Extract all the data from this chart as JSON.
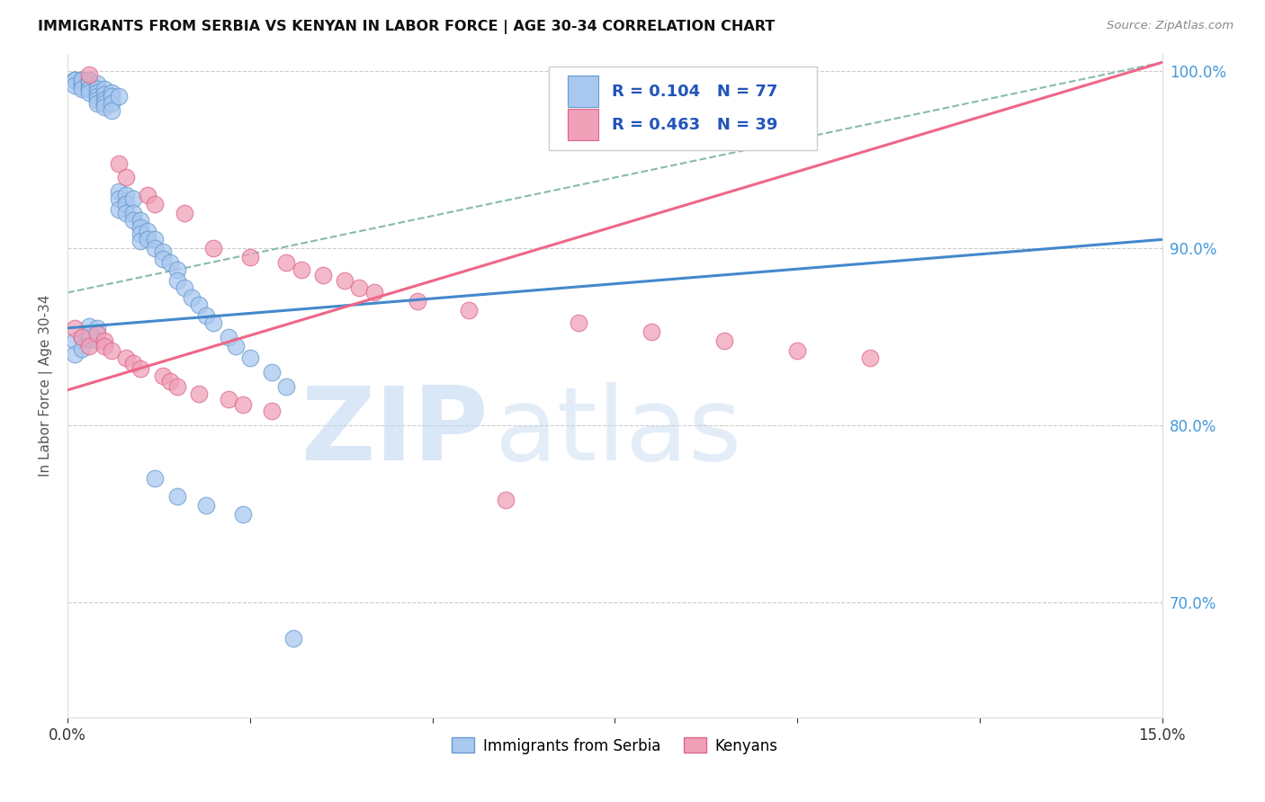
{
  "title": "IMMIGRANTS FROM SERBIA VS KENYAN IN LABOR FORCE | AGE 30-34 CORRELATION CHART",
  "source_text": "Source: ZipAtlas.com",
  "ylabel": "In Labor Force | Age 30-34",
  "xlim": [
    0.0,
    0.15
  ],
  "ylim": [
    0.635,
    1.01
  ],
  "watermark_zip": "ZIP",
  "watermark_atlas": "atlas",
  "serbia_color": "#A8C8F0",
  "kenya_color": "#F0A0B8",
  "serbia_edge": "#6699CC",
  "kenya_edge": "#DD6688",
  "line_blue": "#4488CC",
  "line_pink": "#EE6688",
  "dashed_line_color": "#88BBAA",
  "serbia_x": [
    0.001,
    0.001,
    0.001,
    0.001,
    0.002,
    0.002,
    0.002,
    0.002,
    0.002,
    0.003,
    0.003,
    0.003,
    0.003,
    0.003,
    0.003,
    0.004,
    0.004,
    0.004,
    0.004,
    0.004,
    0.004,
    0.005,
    0.005,
    0.005,
    0.005,
    0.005,
    0.006,
    0.006,
    0.006,
    0.006,
    0.007,
    0.007,
    0.007,
    0.007,
    0.008,
    0.008,
    0.008,
    0.009,
    0.009,
    0.009,
    0.01,
    0.01,
    0.01,
    0.01,
    0.011,
    0.011,
    0.012,
    0.012,
    0.013,
    0.013,
    0.014,
    0.015,
    0.015,
    0.016,
    0.017,
    0.018,
    0.019,
    0.02,
    0.022,
    0.023,
    0.025,
    0.028,
    0.03,
    0.001,
    0.001,
    0.002,
    0.002,
    0.003,
    0.003,
    0.004,
    0.004,
    0.003,
    0.012,
    0.015,
    0.019,
    0.024,
    0.031
  ],
  "serbia_y": [
    0.995,
    0.995,
    0.995,
    0.992,
    0.995,
    0.993,
    0.991,
    0.995,
    0.99,
    0.995,
    0.993,
    0.991,
    0.995,
    0.99,
    0.988,
    0.993,
    0.99,
    0.988,
    0.986,
    0.984,
    0.982,
    0.99,
    0.987,
    0.984,
    0.982,
    0.98,
    0.988,
    0.986,
    0.982,
    0.978,
    0.986,
    0.932,
    0.928,
    0.922,
    0.93,
    0.925,
    0.92,
    0.928,
    0.92,
    0.916,
    0.916,
    0.912,
    0.908,
    0.904,
    0.91,
    0.905,
    0.905,
    0.9,
    0.898,
    0.894,
    0.892,
    0.888,
    0.882,
    0.878,
    0.872,
    0.868,
    0.862,
    0.858,
    0.85,
    0.845,
    0.838,
    0.83,
    0.822,
    0.848,
    0.84,
    0.85,
    0.843,
    0.856,
    0.849,
    0.855,
    0.848,
    0.852,
    0.77,
    0.76,
    0.755,
    0.75,
    0.68
  ],
  "kenya_x": [
    0.001,
    0.002,
    0.003,
    0.003,
    0.004,
    0.005,
    0.005,
    0.006,
    0.007,
    0.008,
    0.008,
    0.009,
    0.01,
    0.011,
    0.012,
    0.013,
    0.014,
    0.015,
    0.016,
    0.018,
    0.02,
    0.022,
    0.024,
    0.025,
    0.028,
    0.03,
    0.032,
    0.035,
    0.038,
    0.04,
    0.042,
    0.048,
    0.055,
    0.06,
    0.07,
    0.08,
    0.09,
    0.1,
    0.11
  ],
  "kenya_y": [
    0.855,
    0.85,
    0.998,
    0.845,
    0.852,
    0.848,
    0.845,
    0.842,
    0.948,
    0.94,
    0.838,
    0.835,
    0.832,
    0.93,
    0.925,
    0.828,
    0.825,
    0.822,
    0.92,
    0.818,
    0.9,
    0.815,
    0.812,
    0.895,
    0.808,
    0.892,
    0.888,
    0.885,
    0.882,
    0.878,
    0.875,
    0.87,
    0.865,
    0.758,
    0.858,
    0.853,
    0.848,
    0.842,
    0.838
  ]
}
